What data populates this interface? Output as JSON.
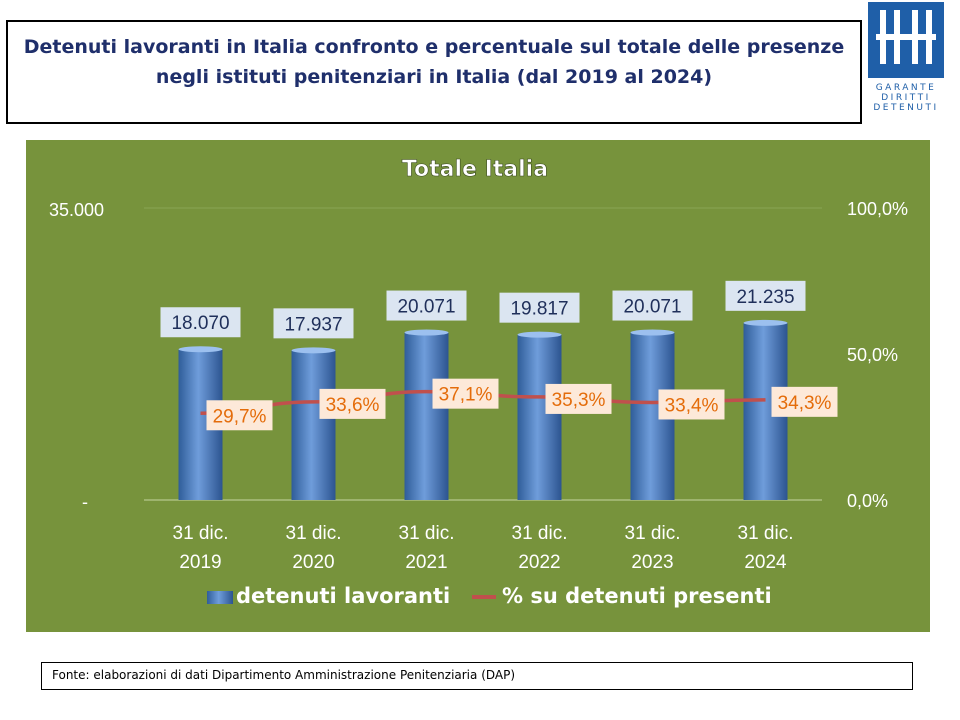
{
  "header": {
    "title_line1": "Detenuti lavoranti in Italia confronto e percentuale sul totale delle presenze",
    "title_line2": "negli istituti penitenziari in Italia (dal 2019 al 2024)"
  },
  "logo": {
    "row1": "GARANTE",
    "row2": "DIRITTI",
    "row3": "DETENUTI",
    "color": "#1f5fa8"
  },
  "chart_data": {
    "type": "bar",
    "title": "Totale Italia",
    "categories": [
      [
        "31 dic.",
        "2019"
      ],
      [
        "31 dic.",
        "2020"
      ],
      [
        "31 dic.",
        "2021"
      ],
      [
        "31 dic.",
        "2022"
      ],
      [
        "31 dic.",
        "2023"
      ],
      [
        "31 dic.",
        "2024"
      ]
    ],
    "series": [
      {
        "name": "detenuti lavoranti",
        "type": "bar",
        "axis": "left",
        "values": [
          18070,
          17937,
          20071,
          19817,
          20071,
          21235
        ],
        "labels": [
          "18.070",
          "17.937",
          "20.071",
          "19.817",
          "20.071",
          "21.235"
        ],
        "color": "#4f81bd"
      },
      {
        "name": "% su detenuti presenti",
        "type": "line",
        "axis": "right",
        "values": [
          29.7,
          33.6,
          37.1,
          35.3,
          33.4,
          34.3
        ],
        "labels": [
          "29,7%",
          "33,6%",
          "37,1%",
          "35,3%",
          "33,4%",
          "34,3%"
        ],
        "color": "#c0504d",
        "label_color": "#e46c0a"
      }
    ],
    "y_left": {
      "range": [
        0,
        35000
      ],
      "ticks": [
        "-",
        "35.000"
      ]
    },
    "y_right": {
      "range": [
        0,
        100
      ],
      "ticks": [
        "0,0%",
        "50,0%",
        "100,0%"
      ]
    },
    "legend": "bottom",
    "background": "#77933c"
  },
  "source": {
    "text": "Fonte: elaborazioni di dati Dipartimento Amministrazione Penitenziaria (DAP)"
  }
}
